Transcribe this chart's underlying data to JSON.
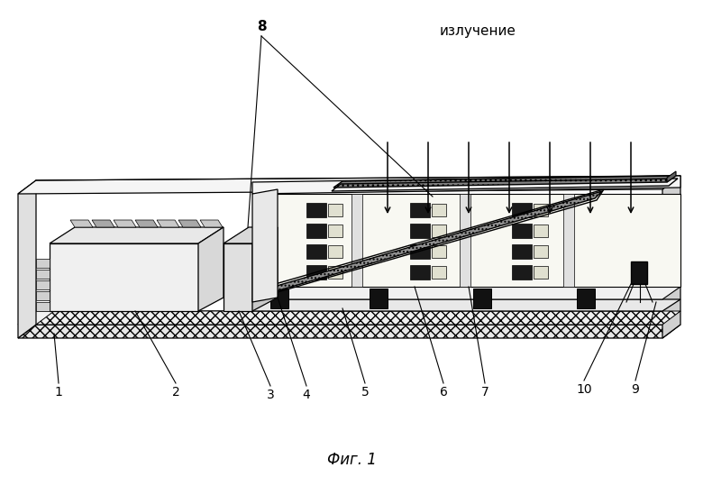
{
  "caption": "Фиг. 1",
  "radiation_label": "излучение",
  "bg_color": "#ffffff",
  "fig_width": 7.8,
  "fig_height": 5.49,
  "dpi": 100
}
